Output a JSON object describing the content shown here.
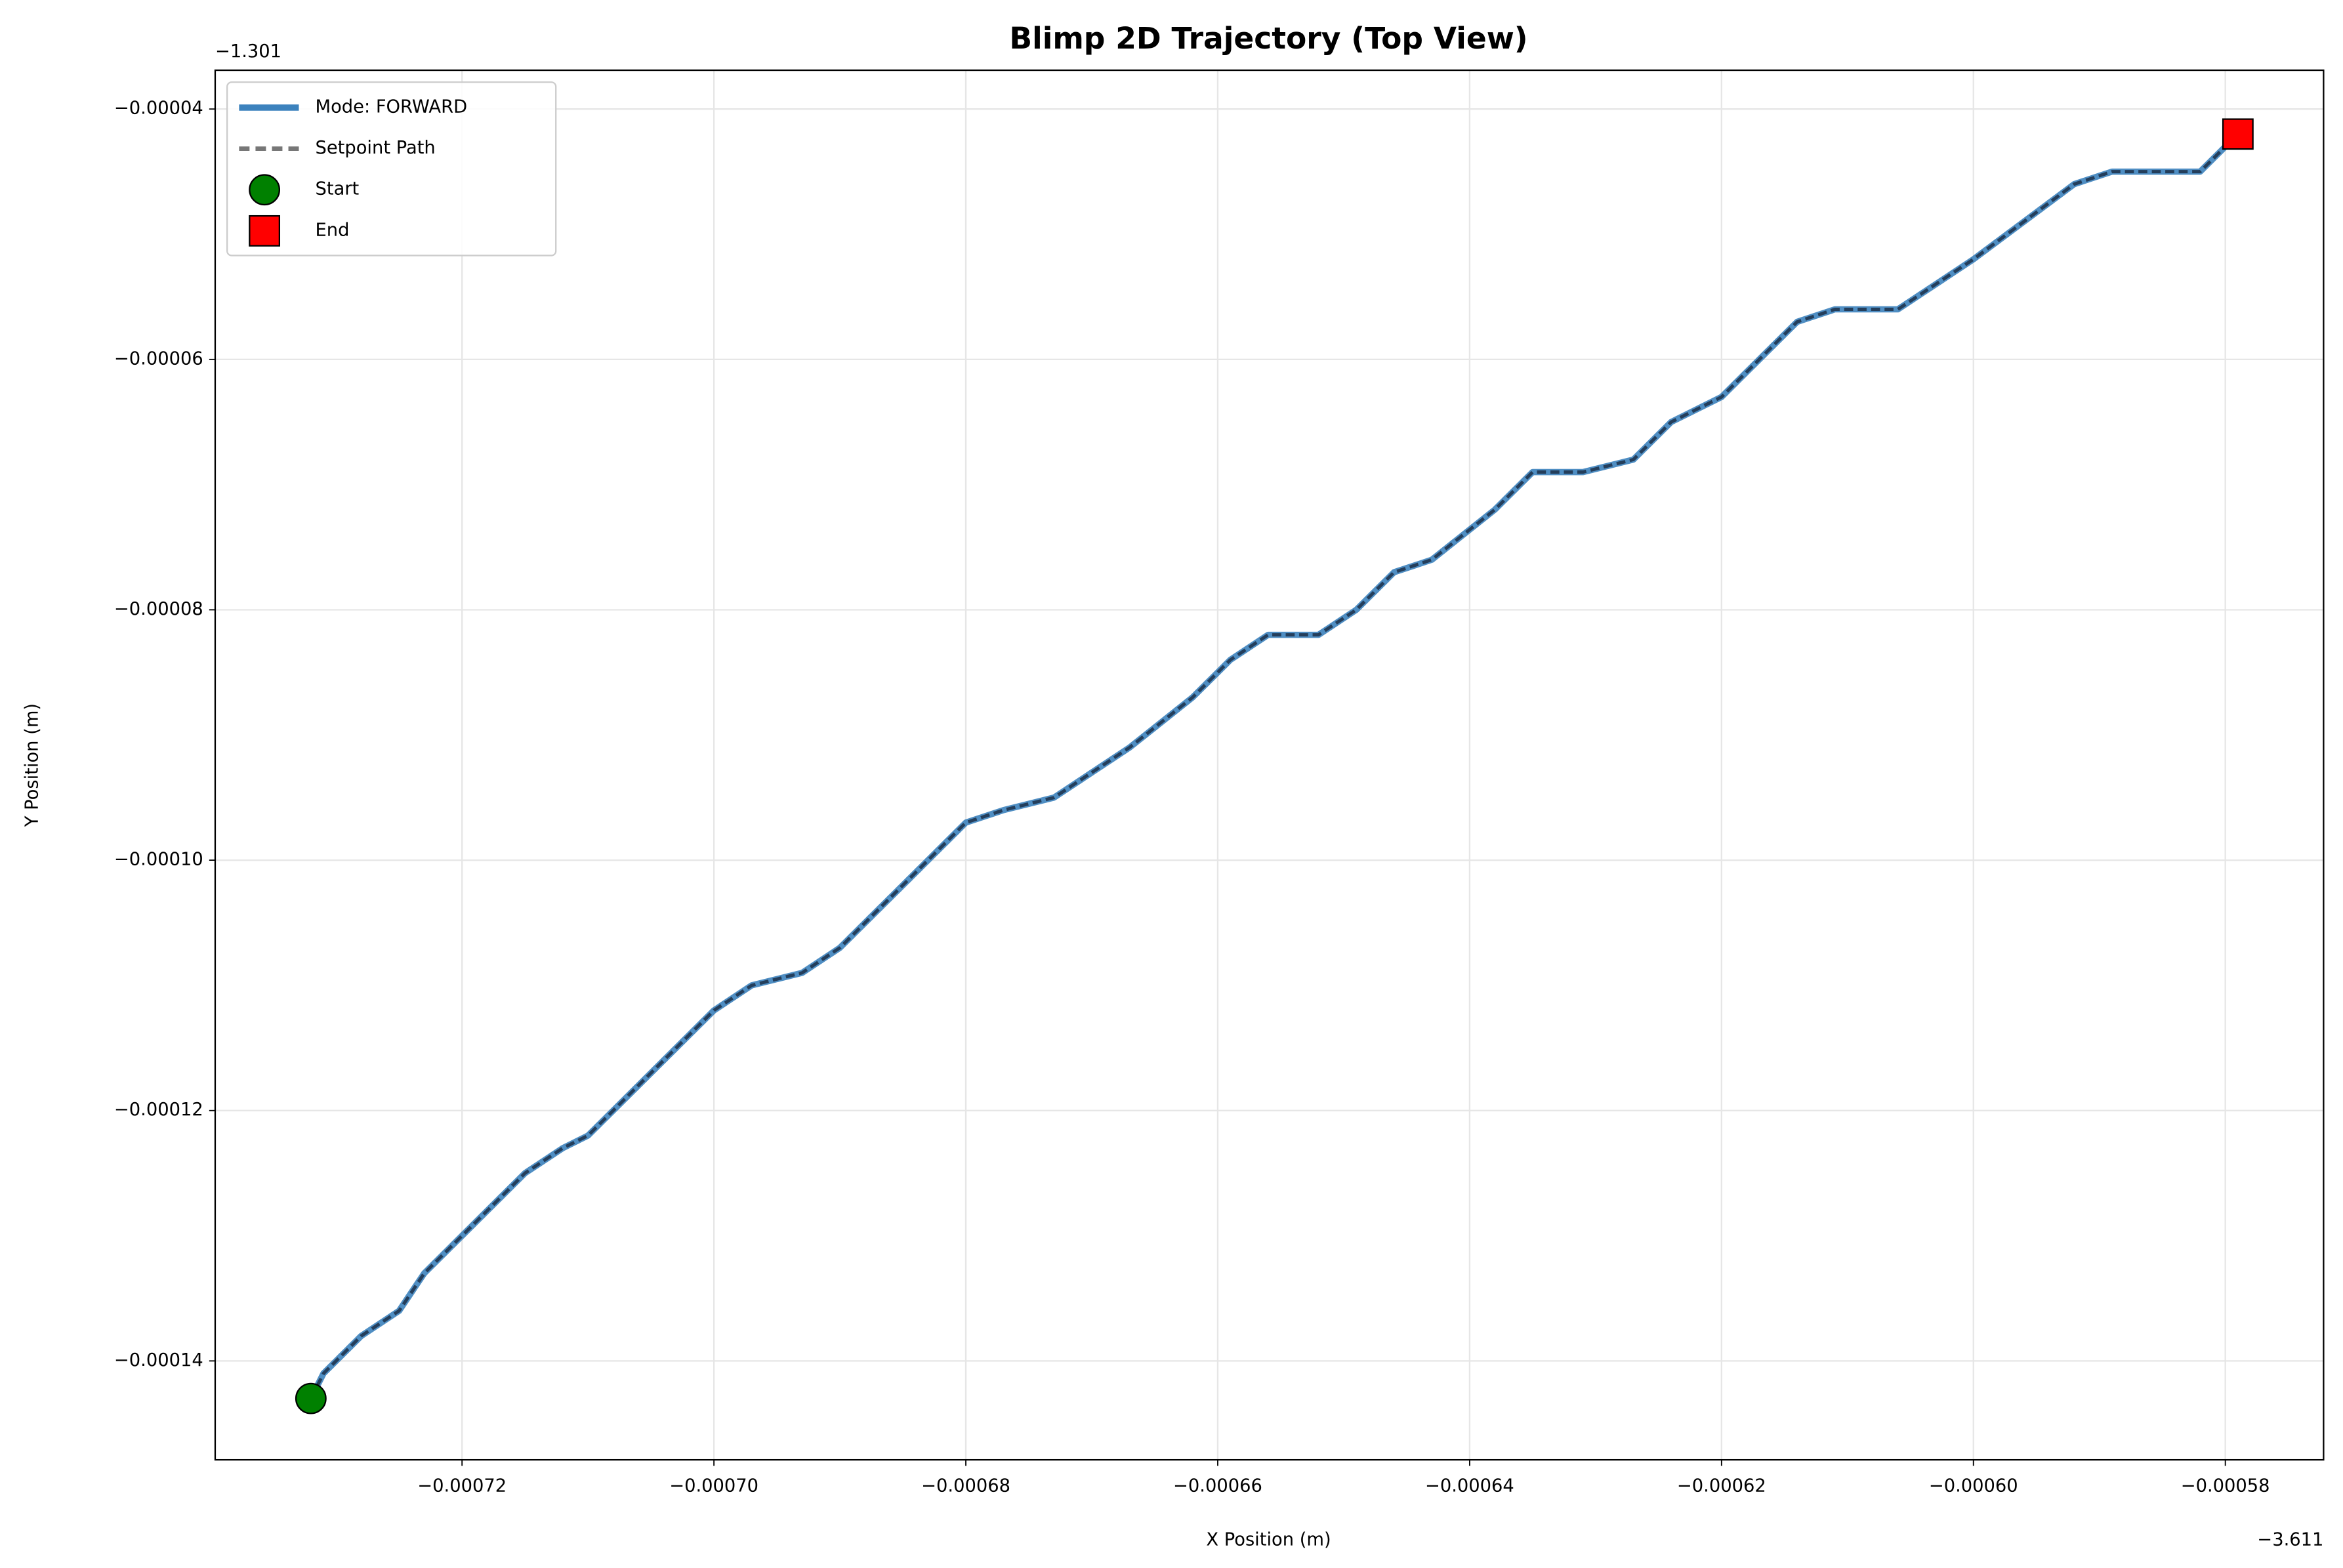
{
  "chart_data": {
    "type": "line",
    "title": "Blimp 2D Trajectory (Top View)",
    "x_label": "X Position (m)",
    "y_label": "Y Position (m)",
    "x_offset_label": "−3.611",
    "y_offset_label": "−1.301",
    "xlim": [
      -0.0007396,
      -0.0005722
    ],
    "ylim": [
      -0.0001479,
      -3.69e-05
    ],
    "xticks": [
      {
        "value": -0.00072,
        "label": "−0.00072"
      },
      {
        "value": -0.0007,
        "label": "−0.00070"
      },
      {
        "value": -0.00068,
        "label": "−0.00068"
      },
      {
        "value": -0.00066,
        "label": "−0.00066"
      },
      {
        "value": -0.00064,
        "label": "−0.00064"
      },
      {
        "value": -0.00062,
        "label": "−0.00062"
      },
      {
        "value": -0.0006,
        "label": "−0.00060"
      },
      {
        "value": -0.00058,
        "label": "−0.00058"
      }
    ],
    "yticks": [
      {
        "value": -0.00014,
        "label": "−0.00014"
      },
      {
        "value": -0.00012,
        "label": "−0.00012"
      },
      {
        "value": -0.0001,
        "label": "−0.00010"
      },
      {
        "value": -8e-05,
        "label": "−0.00008"
      },
      {
        "value": -6e-05,
        "label": "−0.00006"
      },
      {
        "value": -4e-05,
        "label": "−0.00004"
      }
    ],
    "grid": true,
    "legend": "upper left",
    "x": [
      -0.000732,
      -0.000731,
      -0.000728,
      -0.000725,
      -0.000723,
      -0.00072,
      -0.000717,
      -0.000715,
      -0.000712,
      -0.00071,
      -0.0007,
      -0.000697,
      -0.000693,
      -0.00069,
      -0.000686,
      -0.000683,
      -0.00068,
      -0.000677,
      -0.000673,
      -0.00067,
      -0.000667,
      -0.000662,
      -0.000659,
      -0.000656,
      -0.000652,
      -0.000649,
      -0.000646,
      -0.000643,
      -0.000638,
      -0.000635,
      -0.000631,
      -0.000627,
      -0.000624,
      -0.00062,
      -0.000617,
      -0.000614,
      -0.000611,
      -0.000606,
      -0.000603,
      -0.0006,
      -0.000596,
      -0.000592,
      -0.000589,
      -0.000582,
      -0.000579
    ],
    "series": [
      {
        "name": "Mode: FORWARD",
        "color": "#3c82bd",
        "style": "solid",
        "values": [
          -0.000143,
          -0.000141,
          -0.000138,
          -0.000136,
          -0.000133,
          -0.00013,
          -0.000127,
          -0.000125,
          -0.000123,
          -0.000122,
          -0.000112,
          -0.00011,
          -0.000109,
          -0.000107,
          -0.000103,
          -0.0001,
          -9.7e-05,
          -9.6e-05,
          -9.5e-05,
          -9.3e-05,
          -9.1e-05,
          -8.7e-05,
          -8.4e-05,
          -8.2e-05,
          -8.2e-05,
          -8e-05,
          -7.7e-05,
          -7.6e-05,
          -7.2e-05,
          -6.9e-05,
          -6.9e-05,
          -6.8e-05,
          -6.5e-05,
          -6.3e-05,
          -6e-05,
          -5.7e-05,
          -5.6e-05,
          -5.6e-05,
          -5.4e-05,
          -5.2e-05,
          -4.9e-05,
          -4.6e-05,
          -4.5e-05,
          -4.5e-05,
          -4.2e-05
        ]
      },
      {
        "name": "Setpoint Path",
        "color": "#1f3550",
        "style": "dashed",
        "values": [
          -0.000143,
          -0.000141,
          -0.000138,
          -0.000136,
          -0.000133,
          -0.00013,
          -0.000127,
          -0.000125,
          -0.000123,
          -0.000122,
          -0.000112,
          -0.00011,
          -0.000109,
          -0.000107,
          -0.000103,
          -0.0001,
          -9.7e-05,
          -9.6e-05,
          -9.5e-05,
          -9.3e-05,
          -9.1e-05,
          -8.7e-05,
          -8.4e-05,
          -8.2e-05,
          -8.2e-05,
          -8e-05,
          -7.7e-05,
          -7.6e-05,
          -7.2e-05,
          -6.9e-05,
          -6.9e-05,
          -6.8e-05,
          -6.5e-05,
          -6.3e-05,
          -6e-05,
          -5.7e-05,
          -5.6e-05,
          -5.6e-05,
          -5.4e-05,
          -5.2e-05,
          -4.9e-05,
          -4.6e-05,
          -4.5e-05,
          -4.5e-05,
          -4.2e-05
        ]
      }
    ],
    "markers": [
      {
        "name": "Start",
        "shape": "circle",
        "color": "#008000",
        "x": -0.000732,
        "y": -0.000143
      },
      {
        "name": "End",
        "shape": "square",
        "color": "#ff0000",
        "x": -0.000579,
        "y": -4.2e-05
      }
    ]
  }
}
